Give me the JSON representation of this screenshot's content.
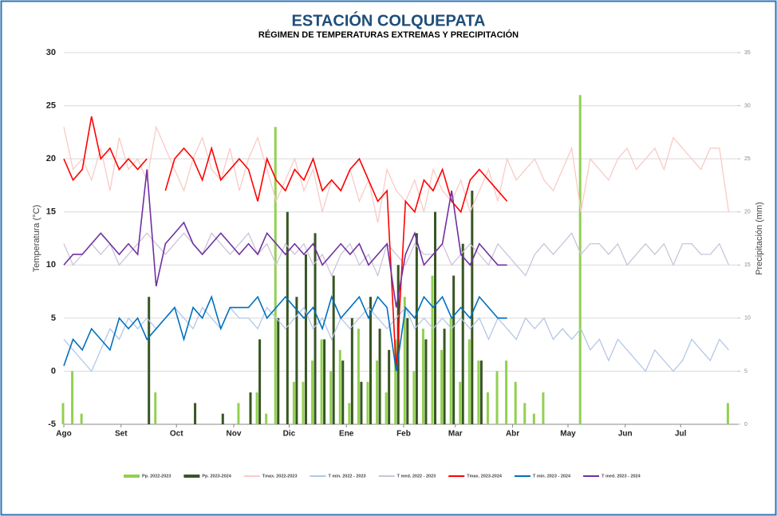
{
  "chart_data": {
    "type": "line",
    "title": "ESTACIÓN  COLQUEPATA",
    "subtitle": "RÉGIMEN DE TEMPERATURAS EXTREMAS Y PRECIPITACIÓN",
    "y_label": "Temperatura (°C)",
    "y2_label": "Precipitación (mm)",
    "x": [
      0,
      5,
      10,
      15,
      20,
      25,
      30,
      35,
      40,
      45,
      50,
      55,
      60,
      65,
      70,
      75,
      80,
      85,
      90,
      95,
      100,
      105,
      110,
      115,
      120,
      125,
      130,
      135,
      140,
      145,
      150,
      155,
      160,
      165,
      170,
      175,
      180,
      185,
      190,
      195,
      200,
      205,
      210,
      215,
      220,
      225,
      230,
      235,
      240,
      245,
      250,
      255,
      260,
      265,
      270,
      275,
      280,
      285,
      290,
      295,
      300,
      305,
      310,
      315,
      320,
      325,
      330,
      335,
      340,
      345,
      350,
      355,
      360
    ],
    "xlim": [
      0,
      365
    ],
    "xticks": [
      {
        "value": 0,
        "label": "Ago"
      },
      {
        "value": 31,
        "label": "Set"
      },
      {
        "value": 61,
        "label": "Oct"
      },
      {
        "value": 92,
        "label": "Nov"
      },
      {
        "value": 122,
        "label": "Dic"
      },
      {
        "value": 153,
        "label": "Ene"
      },
      {
        "value": 184,
        "label": "Feb"
      },
      {
        "value": 212,
        "label": "Mar"
      },
      {
        "value": 243,
        "label": "Abr"
      },
      {
        "value": 273,
        "label": "May"
      },
      {
        "value": 304,
        "label": "Jun"
      },
      {
        "value": 334,
        "label": "Jul"
      }
    ],
    "ylim": [
      -5,
      30
    ],
    "yticks": [
      -5,
      0,
      5,
      10,
      15,
      20,
      25,
      30
    ],
    "y2lim": [
      0,
      35
    ],
    "y2ticks": [
      0,
      5,
      10,
      15,
      20,
      25,
      30,
      35
    ],
    "grid": true,
    "series": [
      {
        "name": "Pp. 2022-2023",
        "color": "#92d050",
        "type": "bar",
        "axis": "y2",
        "values": [
          2,
          5,
          1,
          0,
          0,
          0,
          0,
          0,
          0,
          0,
          3,
          0,
          0,
          0,
          0,
          0,
          0,
          0,
          0,
          2,
          0,
          3,
          1,
          28,
          0,
          4,
          4,
          6,
          8,
          5,
          7,
          2,
          9,
          4,
          6,
          3,
          8,
          12,
          5,
          9,
          14,
          7,
          10,
          4,
          8,
          6,
          3,
          5,
          6,
          4,
          2,
          1,
          3,
          0,
          0,
          0,
          31,
          0,
          0,
          0,
          0,
          0,
          0,
          0,
          0,
          0,
          0,
          0,
          0,
          0,
          0,
          0,
          2
        ]
      },
      {
        "name": "Pp. 2023-2024",
        "color": "#375623",
        "type": "bar",
        "axis": "y2",
        "values": [
          0,
          0,
          0,
          0,
          0,
          0,
          0,
          0,
          0,
          12,
          0,
          0,
          0,
          0,
          2,
          0,
          0,
          1,
          0,
          0,
          3,
          8,
          0,
          10,
          20,
          12,
          16,
          18,
          8,
          14,
          6,
          10,
          4,
          12,
          9,
          7,
          15,
          10,
          18,
          8,
          20,
          9,
          14,
          17,
          22,
          6,
          0,
          0,
          0,
          null,
          null,
          null,
          null,
          null,
          null,
          null,
          null,
          null,
          null,
          null,
          null,
          null,
          null,
          null,
          null,
          null,
          null,
          null,
          null,
          null,
          null,
          null,
          null
        ]
      },
      {
        "name": "Tmax. 2022-2023",
        "color": "#f8cbc7",
        "type": "line",
        "values": [
          23,
          19,
          20,
          18,
          21,
          17,
          22,
          19,
          20,
          18,
          23,
          21,
          19,
          17,
          20,
          22,
          19,
          18,
          21,
          17,
          20,
          22,
          19,
          16,
          18,
          20,
          17,
          19,
          15,
          18,
          17,
          19,
          16,
          18,
          14,
          19,
          17,
          16,
          18,
          15,
          19,
          17,
          16,
          18,
          15,
          17,
          19,
          16,
          20,
          18,
          19,
          20,
          18,
          17,
          19,
          21,
          15,
          20,
          19,
          18,
          20,
          21,
          19,
          20,
          21,
          19,
          22,
          21,
          20,
          19,
          21,
          21,
          15
        ]
      },
      {
        "name": "T min. 2022 - 2023",
        "color": "#b4c7e7",
        "type": "line",
        "values": [
          3,
          2,
          1,
          0,
          2,
          4,
          3,
          5,
          4,
          5,
          4,
          5,
          6,
          5,
          4,
          6,
          5,
          4,
          6,
          5,
          5,
          4,
          6,
          5,
          4,
          5,
          6,
          4,
          5,
          3,
          5,
          4,
          5,
          6,
          5,
          4,
          5,
          6,
          4,
          5,
          4,
          5,
          4,
          5,
          4,
          5,
          3,
          5,
          4,
          3,
          5,
          4,
          5,
          3,
          4,
          3,
          4,
          2,
          3,
          1,
          3,
          2,
          1,
          0,
          2,
          1,
          0,
          1,
          3,
          2,
          1,
          3,
          2
        ]
      },
      {
        "name": "T med. 2022 - 2023",
        "color": "#cdc3da",
        "type": "line",
        "values": [
          12,
          10,
          11,
          12,
          11,
          12,
          10,
          11,
          12,
          13,
          12,
          11,
          12,
          13,
          12,
          11,
          13,
          12,
          11,
          12,
          13,
          11,
          12,
          10,
          12,
          11,
          12,
          10,
          11,
          9,
          11,
          12,
          10,
          11,
          9,
          12,
          11,
          10,
          12,
          11,
          11,
          12,
          10,
          11,
          12,
          11,
          10,
          12,
          11,
          10,
          9,
          11,
          12,
          11,
          12,
          13,
          11,
          12,
          12,
          11,
          12,
          10,
          11,
          12,
          11,
          12,
          10,
          12,
          12,
          11,
          11,
          12,
          10
        ]
      },
      {
        "name": "Tmax. 2023-2024",
        "color": "#ff0000",
        "type": "line",
        "values": [
          20,
          18,
          19,
          24,
          20,
          21,
          19,
          20,
          19,
          20,
          null,
          17,
          20,
          21,
          20,
          18,
          21,
          18,
          19,
          20,
          19,
          16,
          20,
          18,
          17,
          19,
          18,
          20,
          17,
          18,
          17,
          19,
          20,
          18,
          16,
          17,
          0,
          16,
          15,
          18,
          17,
          19,
          16,
          15,
          18,
          19,
          18,
          17,
          16,
          null,
          null,
          null,
          null,
          null,
          null,
          null,
          null,
          null,
          null,
          null,
          null,
          null,
          null,
          null,
          null,
          null,
          null,
          null,
          null,
          null,
          null,
          null,
          null
        ]
      },
      {
        "name": "T min. 2023 - 2024",
        "color": "#0070c0",
        "type": "line",
        "values": [
          0.5,
          3,
          2,
          4,
          3,
          2,
          5,
          4,
          5,
          3,
          4,
          5,
          6,
          3,
          6,
          5,
          7,
          4,
          6,
          6,
          6,
          7,
          5,
          6,
          7,
          6,
          5,
          6,
          4,
          7,
          5,
          6,
          7,
          5,
          7,
          6,
          0,
          6,
          5,
          7,
          6,
          7,
          5,
          6,
          5,
          7,
          6,
          5,
          5,
          null,
          null,
          null,
          null,
          null,
          null,
          null,
          null,
          null,
          null,
          null,
          null,
          null,
          null,
          null,
          null,
          null,
          null,
          null,
          null,
          null,
          null,
          null,
          null
        ]
      },
      {
        "name": "T med. 2023 - 2024",
        "color": "#7030a0",
        "type": "line",
        "values": [
          10,
          11,
          11,
          12,
          13,
          12,
          11,
          12,
          11,
          19,
          8,
          12,
          13,
          14,
          12,
          11,
          12,
          13,
          12,
          11,
          12,
          11,
          13,
          12,
          11,
          12,
          11,
          12,
          10,
          11,
          12,
          11,
          12,
          10,
          11,
          12,
          6,
          11,
          13,
          10,
          11,
          12,
          17,
          11,
          10,
          12,
          11,
          10,
          10,
          null,
          null,
          null,
          null,
          null,
          null,
          null,
          null,
          null,
          null,
          null,
          null,
          null,
          null,
          null,
          null,
          null,
          null,
          null,
          null,
          null,
          null,
          null,
          null
        ]
      }
    ]
  }
}
